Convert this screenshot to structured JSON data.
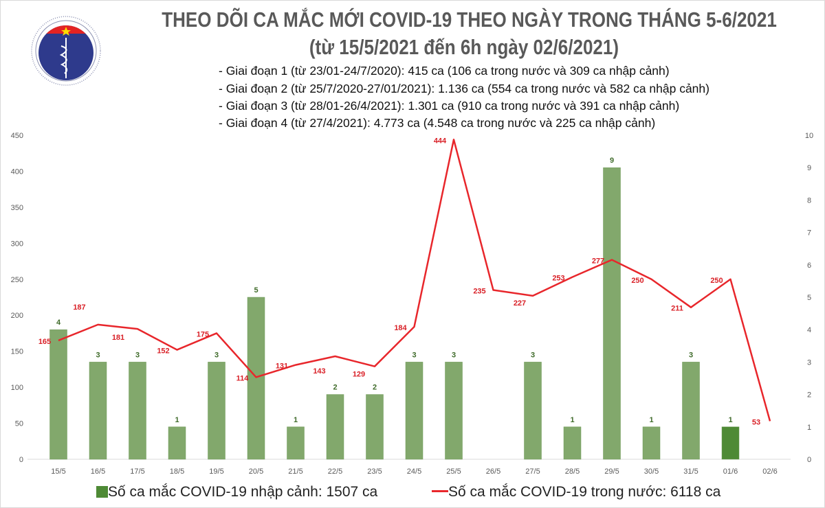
{
  "header": {
    "title_line1": "THEO DÕI CA MẮC MỚI COVID-19 THEO NGÀY TRONG THÁNG 5-6/2021",
    "title_line2": "(từ 15/5/2021 đến 6h ngày 02/6/2021)",
    "notes": [
      "- Giai đoạn 1 (từ 23/01-24/7/2020): 415 ca (106 ca trong nước và 309 ca nhập cảnh)",
      "- Giai đoạn 2 (từ 25/7/2020-27/01/2021): 1.136 ca (554 ca trong nước và 582 ca nhập cảnh)",
      "- Giai đoạn 3 (từ 28/01-26/4/2021): 1.301 ca (910 ca trong nước và 391 ca nhập cảnh)",
      "- Giai đoạn 4 (từ 27/4/2021): 4.773 ca (4.548 ca trong nước và 225 ca nhập cảnh)"
    ]
  },
  "logo": {
    "top_text": "BỘ Y TẾ",
    "bottom_text": "MINISTRY OF HEALTH"
  },
  "chart_data": {
    "type": "bar+line",
    "categories": [
      "15/5",
      "16/5",
      "17/5",
      "18/5",
      "19/5",
      "20/5",
      "21/5",
      "22/5",
      "23/5",
      "24/5",
      "25/5",
      "26/5",
      "27/5",
      "28/5",
      "29/5",
      "30/5",
      "31/5",
      "01/6",
      "02/6"
    ],
    "series": [
      {
        "name": "Số ca mắc COVID-19 nhập cảnh: 1507 ca",
        "type": "bar",
        "axis": "right",
        "color": "#82a86c",
        "highlight_color": "#4e8a35",
        "highlight_index": 17,
        "values": [
          4,
          3,
          3,
          1,
          3,
          5,
          1,
          2,
          2,
          3,
          3,
          null,
          3,
          1,
          9,
          1,
          3,
          1,
          null
        ]
      },
      {
        "name": "Số ca mắc COVID-19 trong nước: 6118 ca",
        "type": "line",
        "axis": "left",
        "color": "#e8262b",
        "values": [
          165,
          187,
          181,
          152,
          175,
          114,
          131,
          143,
          129,
          184,
          444,
          235,
          227,
          253,
          277,
          250,
          211,
          250,
          53
        ]
      }
    ],
    "left_axis": {
      "range": [
        0,
        450
      ],
      "ticks": [
        0,
        50,
        100,
        150,
        200,
        250,
        300,
        350,
        400,
        450
      ]
    },
    "right_axis": {
      "range": [
        0,
        10
      ],
      "ticks": [
        0,
        1,
        2,
        3,
        4,
        5,
        6,
        7,
        8,
        9,
        10
      ]
    },
    "grid": false,
    "legend": "bottom"
  }
}
